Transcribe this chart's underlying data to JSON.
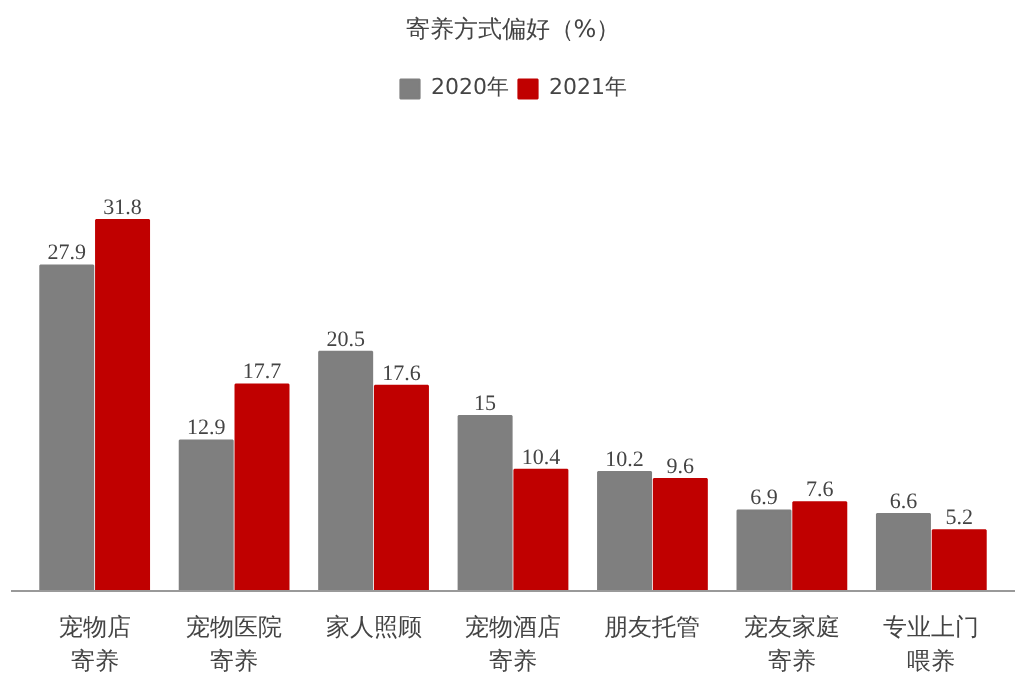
{
  "chart_data": {
    "type": "bar",
    "title": "寄养方式偏好（%）",
    "categories": [
      "宠物店寄养",
      "宠物医院寄养",
      "家人照顾",
      "宠物酒店寄养",
      "朋友托管",
      "宠友家庭寄养",
      "专业上门喂养"
    ],
    "series": [
      {
        "name": "2020年",
        "color": "#7f7f7f",
        "values": [
          27.9,
          12.9,
          20.5,
          15,
          10.2,
          6.9,
          6.6
        ]
      },
      {
        "name": "2021年",
        "color": "#c00000",
        "values": [
          31.8,
          17.7,
          17.6,
          10.4,
          9.6,
          7.6,
          5.2
        ]
      }
    ],
    "data_labels": true,
    "legend": "top",
    "grid": false
  }
}
